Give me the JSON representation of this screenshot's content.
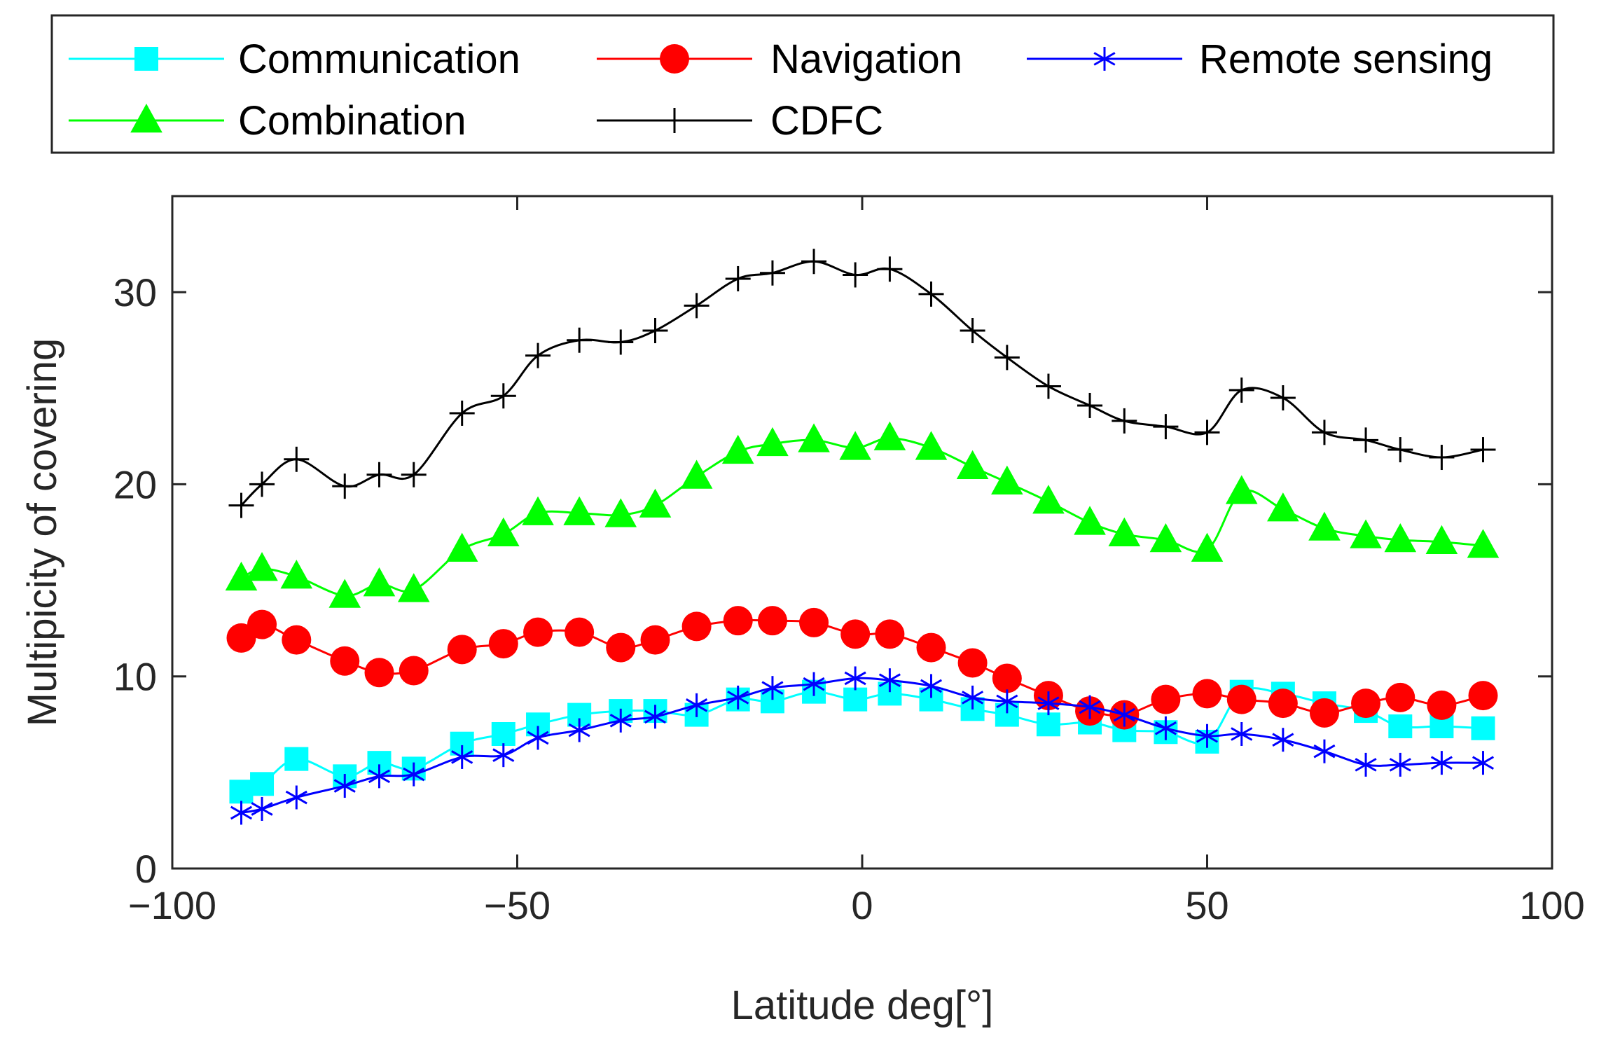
{
  "chart_data": {
    "type": "line",
    "xlabel": "Latitude deg[°]",
    "ylabel": "Multipicity of covering",
    "xlim": [
      -100,
      100
    ],
    "ylim": [
      0,
      35
    ],
    "xticks": [
      -100,
      -50,
      0,
      50,
      100
    ],
    "yticks": [
      0,
      10,
      20,
      30
    ],
    "xtick_labels": [
      "−100",
      "−50",
      "0",
      "50",
      "100"
    ],
    "ytick_labels": [
      "0",
      "10",
      "20",
      "30"
    ],
    "grid": false,
    "legend_position": "top, outside plot, 3 columns",
    "series": [
      {
        "name": "Communication",
        "color": "#00FFFF",
        "marker": "square",
        "x": [
          -90,
          -87,
          -82,
          -75,
          -70,
          -65,
          -58,
          -52,
          -47,
          -41,
          -35,
          -30,
          -24,
          -18,
          -13,
          -7,
          -1,
          4,
          10,
          16,
          21,
          27,
          33,
          38,
          44,
          50,
          55,
          61,
          67,
          73,
          78,
          84,
          90
        ],
        "y": [
          4.0,
          4.4,
          5.7,
          4.8,
          5.5,
          5.2,
          6.5,
          7.0,
          7.5,
          8.0,
          8.2,
          8.2,
          8.0,
          8.8,
          8.7,
          9.2,
          8.8,
          9.1,
          8.8,
          8.3,
          8.0,
          7.5,
          7.6,
          7.2,
          7.1,
          6.6,
          9.2,
          9.1,
          8.6,
          8.2,
          7.4,
          7.4,
          7.3
        ]
      },
      {
        "name": "Navigation",
        "color": "#FF0000",
        "marker": "circle",
        "x": [
          -90,
          -87,
          -82,
          -75,
          -70,
          -65,
          -58,
          -52,
          -47,
          -41,
          -35,
          -30,
          -24,
          -18,
          -13,
          -7,
          -1,
          4,
          10,
          16,
          21,
          27,
          33,
          38,
          44,
          50,
          55,
          61,
          67,
          73,
          78,
          84,
          90
        ],
        "y": [
          12.0,
          12.7,
          11.9,
          10.8,
          10.2,
          10.3,
          11.4,
          11.7,
          12.3,
          12.3,
          11.5,
          11.9,
          12.6,
          12.9,
          12.9,
          12.8,
          12.2,
          12.2,
          11.5,
          10.7,
          9.9,
          9.0,
          8.2,
          8.0,
          8.8,
          9.1,
          8.8,
          8.6,
          8.1,
          8.6,
          8.9,
          8.5,
          9.0
        ]
      },
      {
        "name": "Remote sensing",
        "color": "#0000FF",
        "marker": "asterisk",
        "x": [
          -90,
          -87,
          -82,
          -75,
          -70,
          -65,
          -58,
          -52,
          -47,
          -41,
          -35,
          -30,
          -24,
          -18,
          -13,
          -7,
          -1,
          4,
          10,
          16,
          21,
          27,
          33,
          38,
          44,
          50,
          55,
          61,
          67,
          73,
          78,
          84,
          90
        ],
        "y": [
          2.9,
          3.1,
          3.7,
          4.3,
          4.8,
          4.9,
          5.8,
          5.9,
          6.8,
          7.2,
          7.7,
          7.9,
          8.5,
          8.9,
          9.4,
          9.6,
          9.9,
          9.8,
          9.5,
          8.9,
          8.7,
          8.6,
          8.4,
          8.0,
          7.3,
          6.9,
          7.0,
          6.7,
          6.1,
          5.4,
          5.4,
          5.5,
          5.5
        ]
      },
      {
        "name": "Combination",
        "color": "#00FF00",
        "marker": "triangle",
        "x": [
          -90,
          -87,
          -82,
          -75,
          -70,
          -65,
          -58,
          -52,
          -47,
          -41,
          -35,
          -30,
          -24,
          -18,
          -13,
          -7,
          -1,
          4,
          10,
          16,
          21,
          27,
          33,
          38,
          44,
          50,
          55,
          61,
          67,
          73,
          78,
          84,
          90
        ],
        "y": [
          15.1,
          15.6,
          15.2,
          14.2,
          14.8,
          14.5,
          16.6,
          17.4,
          18.5,
          18.5,
          18.4,
          18.9,
          20.4,
          21.7,
          22.1,
          22.3,
          21.9,
          22.4,
          21.9,
          20.9,
          20.1,
          19.1,
          18.0,
          17.4,
          17.1,
          16.6,
          19.6,
          18.7,
          17.7,
          17.3,
          17.1,
          17.0,
          16.8
        ]
      },
      {
        "name": "CDFC",
        "color": "#000000",
        "marker": "plus",
        "x": [
          -90,
          -87,
          -82,
          -75,
          -70,
          -65,
          -58,
          -52,
          -47,
          -41,
          -35,
          -30,
          -24,
          -18,
          -13,
          -7,
          -1,
          4,
          10,
          16,
          21,
          27,
          33,
          38,
          44,
          50,
          55,
          61,
          67,
          73,
          78,
          84,
          90
        ],
        "y": [
          18.9,
          20.0,
          21.3,
          19.9,
          20.5,
          20.5,
          23.7,
          24.6,
          26.7,
          27.5,
          27.4,
          28.0,
          29.3,
          30.7,
          31.0,
          31.6,
          30.9,
          31.2,
          29.9,
          28.0,
          26.6,
          25.1,
          24.1,
          23.3,
          23.0,
          22.7,
          24.9,
          24.5,
          22.7,
          22.3,
          21.8,
          21.4,
          21.8
        ]
      }
    ]
  }
}
